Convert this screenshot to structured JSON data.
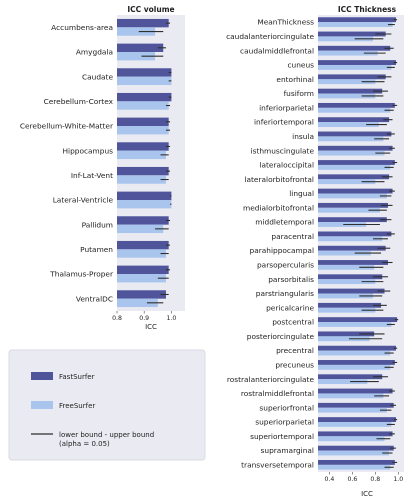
{
  "colors": {
    "fastsurfer": "#4f549b",
    "freesurfer": "#a9c5ee",
    "ci": "#2f2f2f",
    "plot_bg": "#eaeaf2",
    "legend_bg": "#eaeaf2"
  },
  "legend": {
    "items": [
      {
        "key": "fastsurfer",
        "label": "FastSurfer"
      },
      {
        "key": "freesurfer",
        "label": "FreeSurfer"
      },
      {
        "key": "ci",
        "label": "lower bound - upper bound",
        "label2": "(alpha = 0.05)"
      }
    ]
  },
  "chart_data": [
    {
      "type": "bar",
      "orientation": "horizontal",
      "title": "ICC volume",
      "xlabel": "ICC",
      "xlim": [
        0.8,
        1.05
      ],
      "xticks": [
        0.8,
        0.9,
        1.0
      ],
      "xtick_labels": [
        "0.8",
        "0.9",
        "1.0"
      ],
      "grid": false,
      "categories": [
        "Accumbens-area",
        "Amygdala",
        "Caudate",
        "Cerebellum-Cortex",
        "Cerebellum-White-Matter",
        "Hippocampus",
        "Inf-Lat-Vent",
        "Lateral-Ventricle",
        "Pallidum",
        "Putamen",
        "Thalamus-Proper",
        "VentralDC"
      ],
      "series": [
        {
          "name": "FastSurfer",
          "values": [
            0.99,
            0.97,
            1.0,
            1.0,
            0.99,
            0.99,
            0.99,
            1.0,
            0.99,
            0.99,
            0.99,
            0.98
          ],
          "lower": [
            0.98,
            0.95,
            0.99,
            0.99,
            0.98,
            0.98,
            0.98,
            0.995,
            0.98,
            0.98,
            0.98,
            0.96
          ],
          "upper": [
            0.995,
            0.98,
            1.0,
            1.0,
            0.995,
            0.995,
            0.995,
            1.0,
            0.995,
            0.995,
            0.995,
            0.99
          ]
        },
        {
          "name": "FreeSurfer",
          "values": [
            0.94,
            0.94,
            1.0,
            0.99,
            0.99,
            0.98,
            0.98,
            1.0,
            0.97,
            0.98,
            0.98,
            0.95
          ],
          "lower": [
            0.88,
            0.89,
            0.99,
            0.98,
            0.98,
            0.96,
            0.96,
            0.995,
            0.94,
            0.96,
            0.95,
            0.91
          ],
          "upper": [
            0.97,
            0.97,
            1.0,
            0.995,
            0.995,
            0.99,
            0.99,
            1.0,
            0.99,
            0.99,
            0.99,
            0.97
          ]
        }
      ]
    },
    {
      "type": "bar",
      "orientation": "horizontal",
      "title": "ICC Thickness",
      "xlabel": "ICC",
      "xlim": [
        0.3,
        1.05
      ],
      "xticks": [
        0.4,
        0.6,
        0.8,
        1.0
      ],
      "xtick_labels": [
        "0.4",
        "0.6",
        "0.8",
        "1.0"
      ],
      "grid": false,
      "categories": [
        "MeanThickness",
        "caudalanteriorcingulate",
        "caudalmiddlefrontal",
        "cuneus",
        "entorhinal",
        "fusiform",
        "inferiorparietal",
        "inferiortemporal",
        "insula",
        "isthmuscingulate",
        "lateraloccipital",
        "lateralorbitofrontal",
        "lingual",
        "medialorbitofrontal",
        "middletemporal",
        "paracentral",
        "parahippocampal",
        "parsopercularis",
        "parsorbitalis",
        "parstriangularis",
        "pericalcarine",
        "postcentral",
        "posteriorcingulate",
        "precentral",
        "precuneus",
        "rostralanteriorcingulate",
        "rostralmiddlefrontal",
        "superiorfrontal",
        "superiorparietal",
        "superiortemporal",
        "supramarginal",
        "transversetemporal"
      ],
      "series": [
        {
          "name": "FastSurfer",
          "values": [
            0.98,
            0.89,
            0.93,
            0.98,
            0.89,
            0.86,
            0.97,
            0.92,
            0.94,
            0.95,
            0.97,
            0.92,
            0.95,
            0.91,
            0.9,
            0.94,
            0.89,
            0.91,
            0.86,
            0.88,
            0.85,
            0.99,
            0.79,
            0.98,
            0.97,
            0.86,
            0.95,
            0.96,
            0.98,
            0.95,
            0.96,
            0.97
          ],
          "lower": [
            0.96,
            0.8,
            0.88,
            0.96,
            0.82,
            0.78,
            0.95,
            0.87,
            0.9,
            0.92,
            0.95,
            0.86,
            0.92,
            0.85,
            0.84,
            0.9,
            0.82,
            0.86,
            0.78,
            0.82,
            0.78,
            0.97,
            0.66,
            0.96,
            0.95,
            0.78,
            0.92,
            0.93,
            0.96,
            0.92,
            0.93,
            0.95
          ],
          "upper": [
            0.99,
            0.94,
            0.96,
            0.99,
            0.94,
            0.91,
            0.99,
            0.95,
            0.97,
            0.97,
            0.99,
            0.95,
            0.97,
            0.95,
            0.94,
            0.97,
            0.93,
            0.95,
            0.91,
            0.93,
            0.9,
            1.0,
            0.88,
            0.99,
            0.99,
            0.91,
            0.97,
            0.98,
            0.99,
            0.97,
            0.98,
            0.99
          ]
        },
        {
          "name": "FreeSurfer",
          "values": [
            0.95,
            0.78,
            0.82,
            0.94,
            0.8,
            0.8,
            0.93,
            0.83,
            0.87,
            0.88,
            0.93,
            0.8,
            0.9,
            0.84,
            0.72,
            0.86,
            0.76,
            0.79,
            0.8,
            0.78,
            0.8,
            0.94,
            0.75,
            0.93,
            0.93,
            0.73,
            0.87,
            0.9,
            0.94,
            0.88,
            0.92,
            0.93
          ],
          "lower": [
            0.91,
            0.62,
            0.7,
            0.9,
            0.68,
            0.68,
            0.88,
            0.72,
            0.79,
            0.8,
            0.88,
            0.68,
            0.84,
            0.74,
            0.52,
            0.78,
            0.62,
            0.66,
            0.68,
            0.66,
            0.68,
            0.9,
            0.57,
            0.88,
            0.88,
            0.58,
            0.79,
            0.84,
            0.9,
            0.81,
            0.86,
            0.88
          ],
          "upper": [
            0.97,
            0.87,
            0.89,
            0.97,
            0.88,
            0.87,
            0.96,
            0.9,
            0.92,
            0.93,
            0.96,
            0.88,
            0.94,
            0.9,
            0.84,
            0.91,
            0.85,
            0.87,
            0.87,
            0.86,
            0.87,
            0.97,
            0.86,
            0.96,
            0.96,
            0.83,
            0.92,
            0.94,
            0.97,
            0.93,
            0.95,
            0.96
          ]
        }
      ]
    }
  ]
}
